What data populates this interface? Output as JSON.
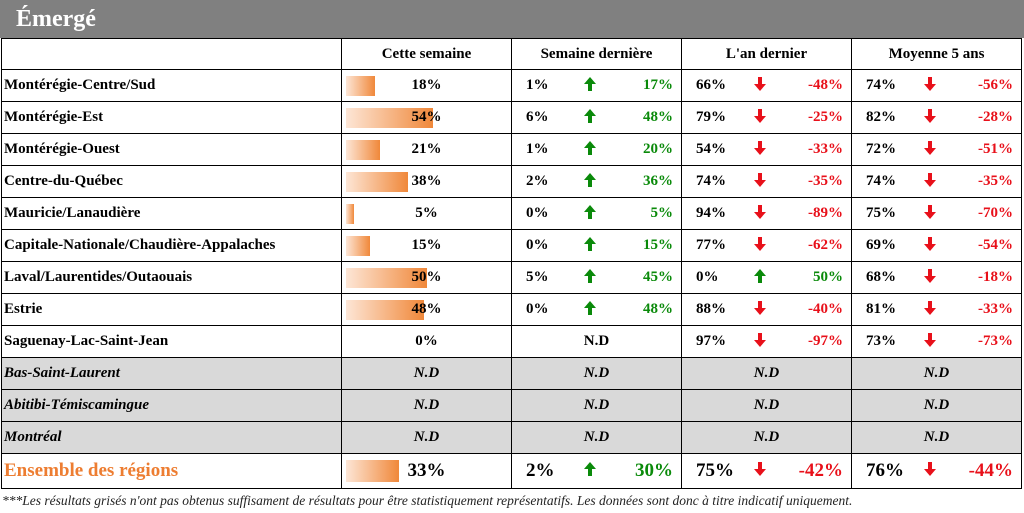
{
  "title": "Émergé",
  "headers": [
    "",
    "Cette semaine",
    "Semaine dernière",
    "L'an dernier",
    "Moyenne 5 ans"
  ],
  "rows": [
    {
      "region": "Montérégie-Centre/Sud",
      "cette": "18%",
      "cette_frac": 0.18,
      "sd_v": "1%",
      "sd_dir": "up",
      "sd_d": "17%",
      "ad_v": "66%",
      "ad_dir": "down",
      "ad_d": "-48%",
      "m5_v": "74%",
      "m5_dir": "down",
      "m5_d": "-56%"
    },
    {
      "region": "Montérégie-Est",
      "cette": "54%",
      "cette_frac": 0.54,
      "sd_v": "6%",
      "sd_dir": "up",
      "sd_d": "48%",
      "ad_v": "79%",
      "ad_dir": "down",
      "ad_d": "-25%",
      "m5_v": "82%",
      "m5_dir": "down",
      "m5_d": "-28%"
    },
    {
      "region": "Montérégie-Ouest",
      "cette": "21%",
      "cette_frac": 0.21,
      "sd_v": "1%",
      "sd_dir": "up",
      "sd_d": "20%",
      "ad_v": "54%",
      "ad_dir": "down",
      "ad_d": "-33%",
      "m5_v": "72%",
      "m5_dir": "down",
      "m5_d": "-51%"
    },
    {
      "region": "Centre-du-Québec",
      "cette": "38%",
      "cette_frac": 0.38,
      "sd_v": "2%",
      "sd_dir": "up",
      "sd_d": "36%",
      "ad_v": "74%",
      "ad_dir": "down",
      "ad_d": "-35%",
      "m5_v": "74%",
      "m5_dir": "down",
      "m5_d": "-35%"
    },
    {
      "region": "Mauricie/Lanaudière",
      "cette": "5%",
      "cette_frac": 0.05,
      "sd_v": "0%",
      "sd_dir": "up",
      "sd_d": "5%",
      "ad_v": "94%",
      "ad_dir": "down",
      "ad_d": "-89%",
      "m5_v": "75%",
      "m5_dir": "down",
      "m5_d": "-70%"
    },
    {
      "region": "Capitale-Nationale/Chaudière-Appalaches",
      "cette": "15%",
      "cette_frac": 0.15,
      "sd_v": "0%",
      "sd_dir": "up",
      "sd_d": "15%",
      "ad_v": "77%",
      "ad_dir": "down",
      "ad_d": "-62%",
      "m5_v": "69%",
      "m5_dir": "down",
      "m5_d": "-54%"
    },
    {
      "region": "Laval/Laurentides/Outaouais",
      "cette": "50%",
      "cette_frac": 0.5,
      "sd_v": "5%",
      "sd_dir": "up",
      "sd_d": "45%",
      "ad_v": "0%",
      "ad_dir": "up",
      "ad_d": "50%",
      "m5_v": "68%",
      "m5_dir": "down",
      "m5_d": "-18%"
    },
    {
      "region": "Estrie",
      "cette": "48%",
      "cette_frac": 0.48,
      "sd_v": "0%",
      "sd_dir": "up",
      "sd_d": "48%",
      "ad_v": "88%",
      "ad_dir": "down",
      "ad_d": "-40%",
      "m5_v": "81%",
      "m5_dir": "down",
      "m5_d": "-33%"
    },
    {
      "region": "Saguenay-Lac-Saint-Jean",
      "cette": "0%",
      "cette_frac": 0.0,
      "sd_nd": "N.D",
      "ad_v": "97%",
      "ad_dir": "down",
      "ad_d": "-97%",
      "m5_v": "73%",
      "m5_dir": "down",
      "m5_d": "-73%"
    },
    {
      "region": "Bas-Saint-Laurent",
      "grey": true,
      "nd": "N.D"
    },
    {
      "region": "Abitibi-Témiscamingue",
      "grey": true,
      "nd": "N.D"
    },
    {
      "region": "Montréal",
      "grey": true,
      "nd": "N.D"
    }
  ],
  "total": {
    "region": "Ensemble des régions",
    "cette": "33%",
    "cette_frac": 0.33,
    "sd_v": "2%",
    "sd_dir": "up",
    "sd_d": "30%",
    "ad_v": "75%",
    "ad_dir": "down",
    "ad_d": "-42%",
    "m5_v": "76%",
    "m5_dir": "down",
    "m5_d": "-44%"
  },
  "icons": {
    "up": "arrow-up-icon",
    "down": "arrow-down-icon"
  },
  "colors": {
    "up": "#0a8a0a",
    "down": "#e8101a",
    "bar": "#f0883a",
    "total_label": "#ed7d31",
    "grey_row": "#d9d9d9",
    "title_bar": "#808080"
  },
  "footnote": "***Les résultats grisés n'ont pas obtenus suffisament de résultats pour être statistiquement représentatifs. Les données sont donc à titre indicatif uniquement."
}
